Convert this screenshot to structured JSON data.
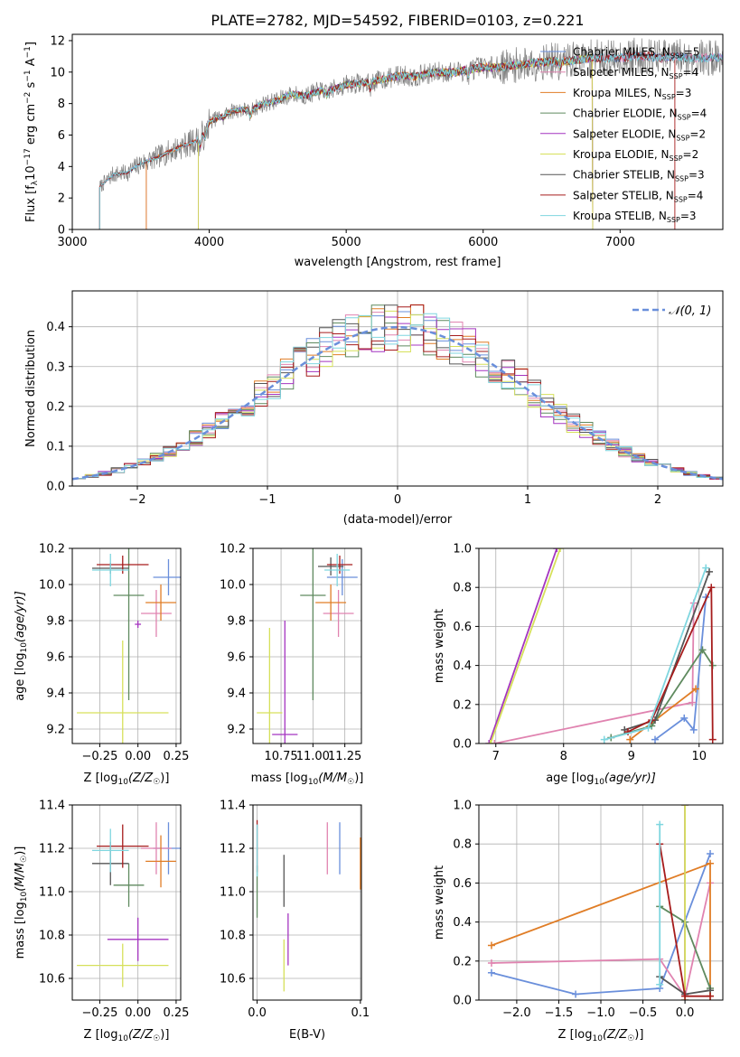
{
  "title": "PLATE=2782, MJD=54592, FIBERID=0103, z=0.221",
  "colors": {
    "Chabrier MILES": "#6a8fdb",
    "Salpeter MILES": "#e083b0",
    "Kroupa MILES": "#e07d26",
    "Chabrier ELODIE": "#5f8a5f",
    "Salpeter ELODIE": "#a434c0",
    "Kroupa ELODIE": "#d6e05a",
    "Chabrier STELIB": "#555555",
    "Salpeter STELIB": "#a61c1c",
    "Kroupa STELIB": "#7fd6df"
  },
  "spectrum": {
    "xlabel": "wavelength [Angstrom, rest frame]",
    "ylabel_parts": [
      "Flux [f",
      "λ",
      "10",
      "−17",
      " erg cm",
      "−2",
      " s",
      "−1",
      " A",
      "−1",
      "]"
    ],
    "legend": [
      {
        "base": "Chabrier MILES, N",
        "n": "5"
      },
      {
        "base": "Salpeter MILES, N",
        "n": "4"
      },
      {
        "base": "Kroupa MILES, N",
        "n": "3"
      },
      {
        "base": "Chabrier ELODIE, N",
        "n": "4"
      },
      {
        "base": "Salpeter ELODIE, N",
        "n": "2"
      },
      {
        "base": "Kroupa ELODIE, N",
        "n": "2"
      },
      {
        "base": "Chabrier STELIB, N",
        "n": "3"
      },
      {
        "base": "Salpeter STELIB, N",
        "n": "4"
      },
      {
        "base": "Kroupa STELIB, N",
        "n": "3"
      }
    ],
    "ssp_sub": "SSP",
    "eq": "=",
    "xticks": [
      "3000",
      "4000",
      "5000",
      "6000",
      "7000"
    ],
    "yticks": [
      "0",
      "2",
      "4",
      "6",
      "8",
      "10",
      "12"
    ]
  },
  "residuals": {
    "xlabel": "(data-model)/error",
    "ylabel": "Normed distribution",
    "legend_label": "𝒩(0, 1)",
    "xticks": [
      "−2",
      "−1",
      "0",
      "1",
      "2"
    ],
    "yticks": [
      "0.0",
      "0.1",
      "0.2",
      "0.3",
      "0.4"
    ]
  },
  "panel_labels": {
    "age_ylabel_pre": "age  [log",
    "age_ylabel_sub": "10",
    "age_ylabel_post": "(age/yr)]",
    "z_xlabel_pre": "Z [log",
    "z_xlabel_sub": "10",
    "z_xlabel_post": "(Z/Z",
    "z_xlabel_sun": "☉",
    "z_xlabel_end": ")]",
    "mass_label_pre": "mass [log",
    "mass_label_sub": "10",
    "mass_label_post": "(M/M",
    "mass_label_sun": "☉",
    "mass_label_end": ")]",
    "mass_weight": "mass weight",
    "ebv": "E(B-V)",
    "age_xlabel_pre": "age  [log",
    "age_xlabel_sub": "10",
    "age_xlabel_post": "(age/yr)]"
  },
  "ticks": {
    "age": [
      "9.2",
      "9.4",
      "9.6",
      "9.8",
      "10.0",
      "10.2"
    ],
    "mass": [
      "10.6",
      "10.8",
      "11.0",
      "11.2",
      "11.4"
    ],
    "z_small": [
      "−0.25",
      "0.00",
      "0.25"
    ],
    "mass_x": [
      "10.75",
      "11.00",
      "11.25"
    ],
    "ebv_x": [
      "0.0",
      "0.1"
    ],
    "mw": [
      "0.0",
      "0.2",
      "0.4",
      "0.6",
      "0.8",
      "1.0"
    ],
    "age_x": [
      "7",
      "8",
      "9",
      "10"
    ],
    "z_wide": [
      "−2.0",
      "−1.5",
      "−1.0",
      "−0.5",
      "0.0"
    ]
  },
  "chart_data": [
    {
      "type": "line",
      "title": "PLATE=2782, MJD=54592, FIBERID=0103, z=0.221",
      "xlabel": "wavelength [Angstrom, rest frame]",
      "ylabel": "Flux [fλ10−17 erg cm−2 s−1 A−1]",
      "xlim": [
        3000,
        7750
      ],
      "ylim": [
        0,
        12.4
      ],
      "series": [
        {
          "name": "data",
          "x": [
            3200,
            3300,
            3400,
            3500,
            3600,
            3700,
            3800,
            3900,
            4000,
            4100,
            4200,
            4300,
            4400,
            4500,
            4600,
            4700,
            4800,
            4900,
            5000,
            5100,
            5200,
            5300,
            5400,
            5500,
            5600,
            5700,
            5800,
            5900,
            6000,
            6100,
            6200,
            6300,
            6400,
            6500,
            6600,
            6700,
            6800,
            6900,
            7000,
            7100,
            7200,
            7300,
            7400,
            7500
          ],
          "y": [
            2.7,
            3.5,
            3.6,
            4.2,
            4.5,
            4.9,
            5.3,
            5.6,
            6.8,
            7.3,
            7.6,
            7.6,
            8.0,
            8.2,
            8.6,
            8.5,
            8.8,
            8.9,
            9.2,
            9.3,
            9.4,
            9.6,
            9.8,
            9.7,
            9.9,
            10.0,
            10.0,
            10.2,
            10.3,
            10.3,
            10.4,
            10.5,
            10.6,
            10.7,
            10.7,
            10.8,
            10.9,
            10.9,
            10.9,
            11.0,
            11.0,
            10.9,
            11.0,
            10.9
          ]
        }
      ]
    },
    {
      "type": "bar",
      "xlabel": "(data-model)/error",
      "ylabel": "Normed distribution",
      "xlim": [
        -2.5,
        2.5
      ],
      "ylim": [
        0,
        0.49
      ],
      "series": [
        {
          "name": "𝒩(0, 1)",
          "x": [
            -2.5,
            -2,
            -1.5,
            -1,
            -0.5,
            0,
            0.5,
            1,
            1.5,
            2,
            2.5
          ],
          "y": [
            0.018,
            0.054,
            0.13,
            0.242,
            0.352,
            0.399,
            0.352,
            0.242,
            0.13,
            0.054,
            0.018
          ]
        }
      ]
    },
    {
      "type": "scatter",
      "xlabel": "Z [log10(Z/Z☉)]",
      "ylabel": "age [log10(age/yr)]",
      "points": [
        {
          "name": "Chabrier MILES",
          "x": 0.2,
          "y": 10.04,
          "xerr": 0.1,
          "yerr": 0.1
        },
        {
          "name": "Salpeter MILES",
          "x": 0.12,
          "y": 9.84,
          "xerr": 0.1,
          "yerr": 0.13
        },
        {
          "name": "Kroupa MILES",
          "x": 0.15,
          "y": 9.9,
          "xerr": 0.1,
          "yerr": 0.1
        },
        {
          "name": "Chabrier ELODIE",
          "x": -0.06,
          "y": 9.94,
          "xerr": 0.1,
          "yerr": 0.58
        },
        {
          "name": "Salpeter ELODIE",
          "x": 0.0,
          "y": 9.78,
          "xerr": 0.02,
          "yerr": 0.02
        },
        {
          "name": "Kroupa ELODIE",
          "x": -0.1,
          "y": 9.29,
          "xerr": 0.3,
          "yerr": 0.4
        },
        {
          "name": "Chabrier STELIB",
          "x": -0.18,
          "y": 10.09,
          "xerr": 0.12,
          "yerr": 0.03
        },
        {
          "name": "Salpeter STELIB",
          "x": -0.1,
          "y": 10.11,
          "xerr": 0.17,
          "yerr": 0.05
        },
        {
          "name": "Kroupa STELIB",
          "x": -0.18,
          "y": 10.08,
          "xerr": 0.12,
          "yerr": 0.09
        }
      ]
    },
    {
      "type": "scatter",
      "xlabel": "mass [log10(M/M☉)]",
      "ylabel": "age [log10(age/yr)]",
      "points": [
        {
          "name": "Chabrier MILES",
          "x": 11.23,
          "y": 10.04,
          "xerr": 0.12,
          "yerr": 0.1
        },
        {
          "name": "Salpeter MILES",
          "x": 11.2,
          "y": 9.84,
          "xerr": 0.12,
          "yerr": 0.13
        },
        {
          "name": "Kroupa MILES",
          "x": 11.14,
          "y": 9.9,
          "xerr": 0.12,
          "yerr": 0.1
        },
        {
          "name": "Chabrier ELODIE",
          "x": 11.0,
          "y": 9.94,
          "xerr": 0.1,
          "yerr": 0.58
        },
        {
          "name": "Salpeter ELODIE",
          "x": 10.78,
          "y": 9.17,
          "xerr": 0.1,
          "yerr": 0.63
        },
        {
          "name": "Kroupa ELODIE",
          "x": 10.66,
          "y": 9.29,
          "xerr": 0.1,
          "yerr": 0.47
        },
        {
          "name": "Chabrier STELIB",
          "x": 11.14,
          "y": 10.1,
          "xerr": 0.1,
          "yerr": 0.05
        },
        {
          "name": "Salpeter STELIB",
          "x": 11.21,
          "y": 10.11,
          "xerr": 0.1,
          "yerr": 0.05
        },
        {
          "name": "Kroupa STELIB",
          "x": 11.19,
          "y": 10.08,
          "xerr": 0.1,
          "yerr": 0.09
        }
      ]
    },
    {
      "type": "line",
      "xlabel": "age [log10(age/yr)]",
      "ylabel": "mass weight",
      "xlim": [
        6.75,
        10.35
      ],
      "ylim": [
        0,
        1
      ],
      "series": [
        {
          "name": "Chabrier MILES",
          "x": [
            9.35,
            9.78,
            9.92,
            10.1
          ],
          "y": [
            0.02,
            0.13,
            0.07,
            0.75
          ]
        },
        {
          "name": "Salpeter MILES",
          "x": [
            6.98,
            9.9,
            9.92
          ],
          "y": [
            0.0,
            0.21,
            0.72
          ]
        },
        {
          "name": "Kroupa MILES",
          "x": [
            8.98,
            9.95
          ],
          "y": [
            0.02,
            0.28
          ]
        },
        {
          "name": "Chabrier ELODIE",
          "x": [
            8.7,
            9.3,
            10.05,
            10.2
          ],
          "y": [
            0.03,
            0.09,
            0.48,
            0.4
          ]
        },
        {
          "name": "Salpeter ELODIE",
          "x": [
            6.9,
            7.9
          ],
          "y": [
            0.0,
            1.0
          ]
        },
        {
          "name": "Kroupa ELODIE",
          "x": [
            6.92,
            7.95
          ],
          "y": [
            0.0,
            1.0
          ]
        },
        {
          "name": "Chabrier STELIB",
          "x": [
            8.9,
            9.35,
            10.15
          ],
          "y": [
            0.07,
            0.12,
            0.88
          ]
        },
        {
          "name": "Salpeter STELIB",
          "x": [
            8.95,
            9.3,
            10.18,
            10.2
          ],
          "y": [
            0.06,
            0.12,
            0.8,
            0.02
          ]
        },
        {
          "name": "Kroupa STELIB",
          "x": [
            8.6,
            9.25,
            10.1
          ],
          "y": [
            0.02,
            0.08,
            0.9
          ]
        }
      ]
    },
    {
      "type": "scatter",
      "xlabel": "Z [log10(Z/Z☉)]",
      "ylabel": "mass [log10(M/M☉)]",
      "points": [
        {
          "name": "Chabrier MILES",
          "x": 0.2,
          "y": 11.2,
          "xerr": 0.1,
          "yerr": 0.12
        },
        {
          "name": "Salpeter MILES",
          "x": 0.12,
          "y": 11.2,
          "xerr": 0.1,
          "yerr": 0.12
        },
        {
          "name": "Kroupa MILES",
          "x": 0.15,
          "y": 11.14,
          "xerr": 0.1,
          "yerr": 0.12
        },
        {
          "name": "Chabrier ELODIE",
          "x": -0.06,
          "y": 11.03,
          "xerr": 0.1,
          "yerr": 0.1
        },
        {
          "name": "Salpeter ELODIE",
          "x": -0.0,
          "y": 10.78,
          "xerr": 0.2,
          "yerr": 0.1
        },
        {
          "name": "Kroupa ELODIE",
          "x": -0.1,
          "y": 10.66,
          "xerr": 0.3,
          "yerr": 0.1
        },
        {
          "name": "Chabrier STELIB",
          "x": -0.18,
          "y": 11.13,
          "xerr": 0.12,
          "yerr": 0.1
        },
        {
          "name": "Salpeter STELIB",
          "x": -0.1,
          "y": 11.21,
          "xerr": 0.17,
          "yerr": 0.1
        },
        {
          "name": "Kroupa STELIB",
          "x": -0.18,
          "y": 11.19,
          "xerr": 0.12,
          "yerr": 0.1
        }
      ]
    },
    {
      "type": "scatter",
      "xlabel": "E(B-V)",
      "ylabel": "mass [log10(M/M☉)]",
      "points": [
        {
          "name": "Chabrier MILES",
          "x": 0.08,
          "y": 11.2
        },
        {
          "name": "Salpeter MILES",
          "x": 0.068,
          "y": 11.2
        },
        {
          "name": "Kroupa MILES",
          "x": 0.1,
          "y": 11.13
        },
        {
          "name": "Chabrier ELODIE",
          "x": 0.0,
          "y": 11.0
        },
        {
          "name": "Salpeter ELODIE",
          "x": 0.03,
          "y": 10.78
        },
        {
          "name": "Kroupa ELODIE",
          "x": 0.026,
          "y": 10.66
        },
        {
          "name": "Chabrier STELIB",
          "x": 0.026,
          "y": 11.05
        },
        {
          "name": "Salpeter STELIB",
          "x": 0.0,
          "y": 11.21
        },
        {
          "name": "Kroupa STELIB",
          "x": 0.0,
          "y": 11.19
        }
      ]
    },
    {
      "type": "line",
      "xlabel": "Z [log10(Z/Z☉)]",
      "ylabel": "mass weight",
      "xlim": [
        -2.45,
        0.45
      ],
      "ylim": [
        0,
        1
      ],
      "series": [
        {
          "name": "Chabrier MILES",
          "x": [
            -2.3,
            -1.3,
            -0.3,
            0.3
          ],
          "y": [
            0.14,
            0.03,
            0.06,
            0.75
          ]
        },
        {
          "name": "Salpeter MILES",
          "x": [
            -2.3,
            -0.3,
            0.0,
            0.3
          ],
          "y": [
            0.19,
            0.21,
            0.02,
            0.6
          ]
        },
        {
          "name": "Kroupa MILES",
          "x": [
            -2.3,
            0.3,
            0.3
          ],
          "y": [
            0.28,
            0.7,
            0.02
          ]
        },
        {
          "name": "Chabrier ELODIE",
          "x": [
            -0.3,
            0.0,
            0.3
          ],
          "y": [
            0.48,
            0.4,
            0.06
          ]
        },
        {
          "name": "Salpeter ELODIE",
          "x": [
            0.0,
            0.0
          ],
          "y": [
            0.0,
            1.0
          ]
        },
        {
          "name": "Kroupa ELODIE",
          "x": [
            0.0,
            0.0
          ],
          "y": [
            0.0,
            1.0
          ]
        },
        {
          "name": "Chabrier STELIB",
          "x": [
            -0.3,
            0.0,
            0.3
          ],
          "y": [
            0.12,
            0.03,
            0.05
          ]
        },
        {
          "name": "Salpeter STELIB",
          "x": [
            -0.3,
            0.0,
            0.3
          ],
          "y": [
            0.8,
            0.02,
            0.02
          ]
        },
        {
          "name": "Kroupa STELIB",
          "x": [
            -0.3,
            -0.3
          ],
          "y": [
            0.08,
            0.9
          ]
        }
      ]
    }
  ]
}
